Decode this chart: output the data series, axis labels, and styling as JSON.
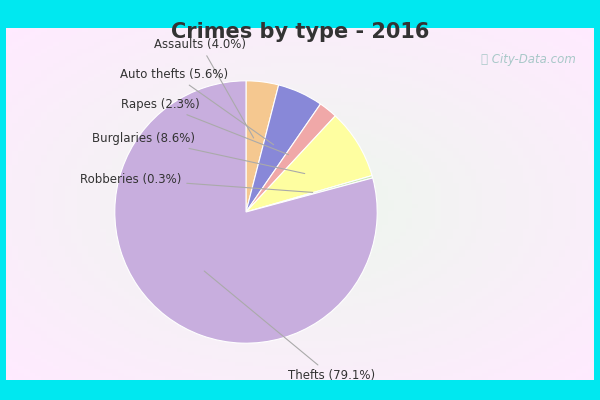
{
  "title": "Crimes by type - 2016",
  "title_fontsize": 15,
  "title_fontweight": "bold",
  "slices": [
    {
      "label": "Thefts",
      "pct": 79.1,
      "color": "#c8aede"
    },
    {
      "label": "Robberies",
      "pct": 0.3,
      "color": "#cce8b8"
    },
    {
      "label": "Burglaries",
      "pct": 8.6,
      "color": "#fefea0"
    },
    {
      "label": "Rapes",
      "pct": 2.3,
      "color": "#f0a8a8"
    },
    {
      "label": "Auto thefts",
      "pct": 5.6,
      "color": "#8888d8"
    },
    {
      "label": "Assaults",
      "pct": 4.0,
      "color": "#f5c890"
    }
  ],
  "border_color": "#00e8f0",
  "bg_center": "#eaf5e8",
  "label_fontsize": 8.5,
  "watermark_text": "City-Data.com",
  "watermark_color": "#a8c8c8",
  "title_color": "#333333"
}
